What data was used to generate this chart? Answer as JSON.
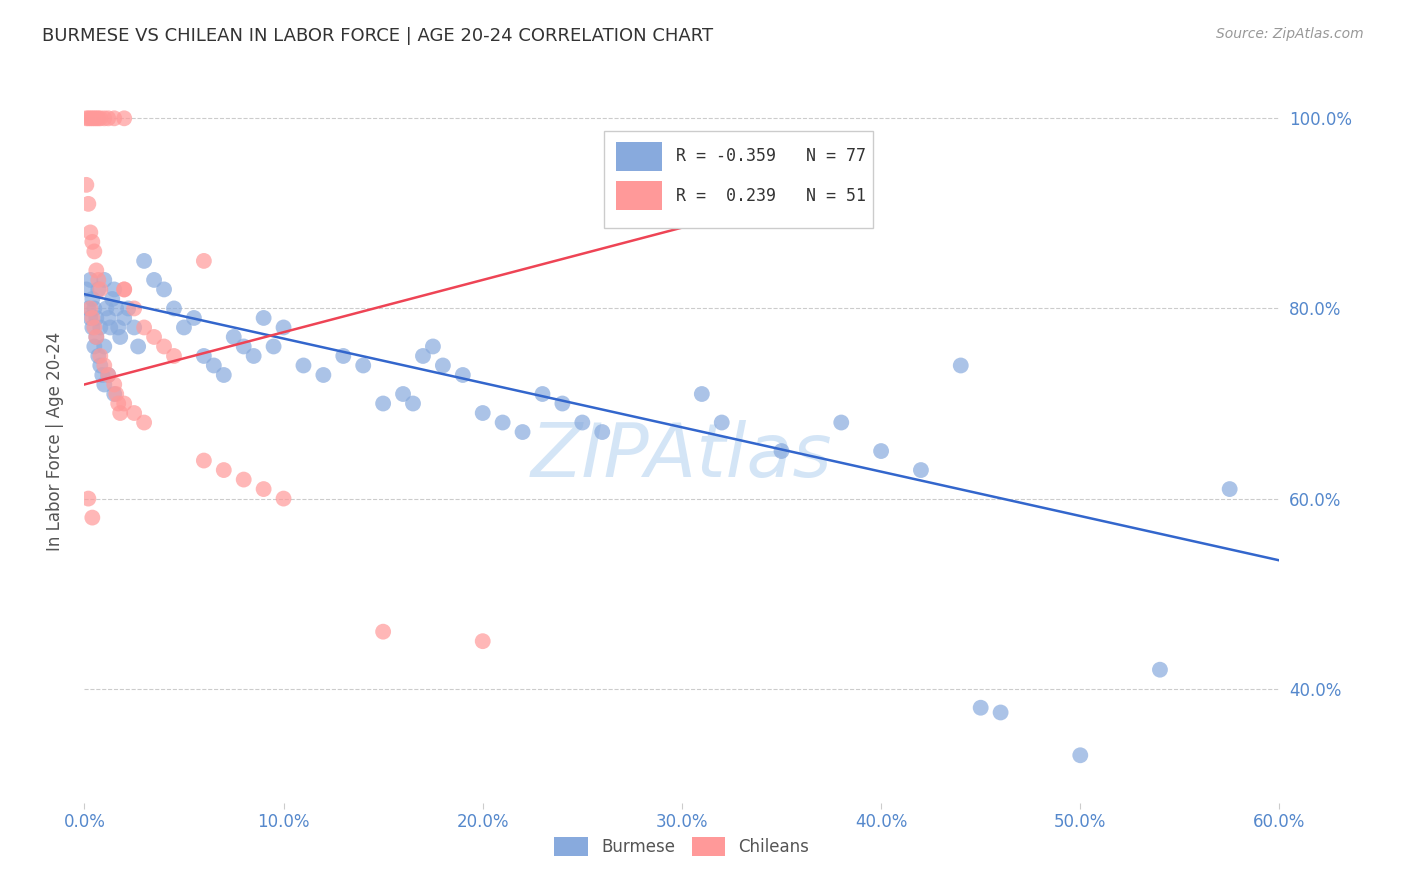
{
  "title": "BURMESE VS CHILEAN IN LABOR FORCE | AGE 20-24 CORRELATION CHART",
  "source": "Source: ZipAtlas.com",
  "xlim": [
    0.0,
    0.6
  ],
  "ylim": [
    0.28,
    1.04
  ],
  "ylabel": "In Labor Force | Age 20-24",
  "blue_color": "#88AADD",
  "pink_color": "#FF9999",
  "blue_line_color": "#3366CC",
  "pink_line_color": "#EE4455",
  "grid_color": "#CCCCCC",
  "title_color": "#333333",
  "tick_color": "#5588CC",
  "watermark_color": "#AACCEE",
  "legend_text_blue": "R = -0.359   N = 77",
  "legend_text_pink": "R =  0.239   N = 51",
  "burmese_x": [
    0.001,
    0.002,
    0.003,
    0.003,
    0.004,
    0.004,
    0.005,
    0.005,
    0.006,
    0.006,
    0.007,
    0.007,
    0.008,
    0.008,
    0.009,
    0.01,
    0.01,
    0.011,
    0.012,
    0.013,
    0.014,
    0.015,
    0.016,
    0.017,
    0.018,
    0.02,
    0.022,
    0.025,
    0.027,
    0.03,
    0.035,
    0.04,
    0.045,
    0.05,
    0.055,
    0.06,
    0.065,
    0.07,
    0.075,
    0.08,
    0.085,
    0.09,
    0.095,
    0.1,
    0.11,
    0.12,
    0.13,
    0.14,
    0.15,
    0.16,
    0.165,
    0.17,
    0.175,
    0.18,
    0.19,
    0.2,
    0.21,
    0.22,
    0.23,
    0.24,
    0.25,
    0.26,
    0.31,
    0.32,
    0.35,
    0.38,
    0.4,
    0.42,
    0.44,
    0.45,
    0.46,
    0.5,
    0.54,
    0.575,
    0.01,
    0.012,
    0.015
  ],
  "burmese_y": [
    0.82,
    0.8,
    0.79,
    0.83,
    0.81,
    0.78,
    0.8,
    0.76,
    0.79,
    0.77,
    0.82,
    0.75,
    0.78,
    0.74,
    0.73,
    0.83,
    0.76,
    0.8,
    0.79,
    0.78,
    0.81,
    0.82,
    0.8,
    0.78,
    0.77,
    0.79,
    0.8,
    0.78,
    0.76,
    0.85,
    0.83,
    0.82,
    0.8,
    0.78,
    0.79,
    0.75,
    0.74,
    0.73,
    0.77,
    0.76,
    0.75,
    0.79,
    0.76,
    0.78,
    0.74,
    0.73,
    0.75,
    0.74,
    0.7,
    0.71,
    0.7,
    0.75,
    0.76,
    0.74,
    0.73,
    0.69,
    0.68,
    0.67,
    0.71,
    0.7,
    0.68,
    0.67,
    0.71,
    0.68,
    0.65,
    0.68,
    0.65,
    0.63,
    0.74,
    0.38,
    0.375,
    0.33,
    0.42,
    0.61,
    0.72,
    0.73,
    0.71
  ],
  "chilean_x": [
    0.001,
    0.002,
    0.003,
    0.004,
    0.005,
    0.006,
    0.007,
    0.008,
    0.01,
    0.012,
    0.015,
    0.02,
    0.001,
    0.002,
    0.003,
    0.004,
    0.005,
    0.006,
    0.007,
    0.008,
    0.003,
    0.004,
    0.005,
    0.006,
    0.02,
    0.025,
    0.03,
    0.035,
    0.04,
    0.045,
    0.008,
    0.01,
    0.012,
    0.015,
    0.016,
    0.017,
    0.018,
    0.02,
    0.025,
    0.03,
    0.06,
    0.07,
    0.08,
    0.09,
    0.1,
    0.15,
    0.2,
    0.02,
    0.06,
    0.002,
    0.004
  ],
  "chilean_y": [
    1.0,
    1.0,
    1.0,
    1.0,
    1.0,
    1.0,
    1.0,
    1.0,
    1.0,
    1.0,
    1.0,
    1.0,
    0.93,
    0.91,
    0.88,
    0.87,
    0.86,
    0.84,
    0.83,
    0.82,
    0.8,
    0.79,
    0.78,
    0.77,
    0.82,
    0.8,
    0.78,
    0.77,
    0.76,
    0.75,
    0.75,
    0.74,
    0.73,
    0.72,
    0.71,
    0.7,
    0.69,
    0.7,
    0.69,
    0.68,
    0.64,
    0.63,
    0.62,
    0.61,
    0.6,
    0.46,
    0.45,
    0.82,
    0.85,
    0.6,
    0.58
  ],
  "blue_line_x0": 0.0,
  "blue_line_x1": 0.6,
  "blue_line_y0": 0.815,
  "blue_line_y1": 0.535,
  "pink_line_x0": 0.0,
  "pink_line_x1": 0.3,
  "pink_line_y0": 0.72,
  "pink_line_y1": 0.885
}
